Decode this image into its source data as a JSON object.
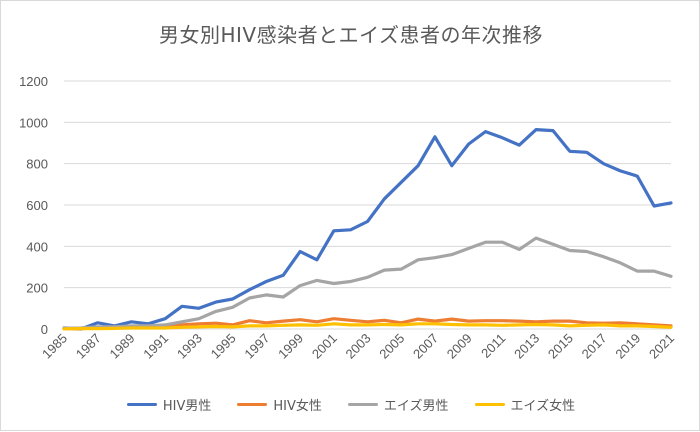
{
  "chart_data": {
    "type": "line",
    "title": "男女別HIV感染者とエイズ患者の年次推移",
    "x": [
      1985,
      1986,
      1987,
      1988,
      1989,
      1990,
      1991,
      1992,
      1993,
      1994,
      1995,
      1996,
      1997,
      1998,
      1999,
      2000,
      2001,
      2002,
      2003,
      2004,
      2005,
      2006,
      2007,
      2008,
      2009,
      2010,
      2011,
      2012,
      2013,
      2014,
      2015,
      2016,
      2017,
      2018,
      2019,
      2020,
      2021
    ],
    "x_tick_labels": [
      "1985",
      "1987",
      "1989",
      "1991",
      "1993",
      "1995",
      "1997",
      "1999",
      "2001",
      "2003",
      "2005",
      "2007",
      "2009",
      "2011",
      "2013",
      "2015",
      "2017",
      "2019",
      "2021"
    ],
    "y_tick_labels": [
      "0",
      "200",
      "400",
      "600",
      "800",
      "1000",
      "1200"
    ],
    "ylim": [
      0,
      1200
    ],
    "grid": true,
    "legend_position": "bottom",
    "series": [
      {
        "name": "HIV男性",
        "color": "#4472c4",
        "values": [
          5,
          0,
          30,
          15,
          35,
          25,
          50,
          110,
          100,
          130,
          145,
          190,
          230,
          260,
          375,
          335,
          475,
          480,
          520,
          630,
          710,
          790,
          930,
          790,
          895,
          955,
          925,
          890,
          965,
          960,
          860,
          855,
          800,
          765,
          740,
          595,
          610
        ]
      },
      {
        "name": "HIV女性",
        "color": "#ed7d31",
        "values": [
          2,
          2,
          5,
          8,
          10,
          12,
          15,
          20,
          25,
          28,
          20,
          40,
          30,
          38,
          45,
          35,
          50,
          42,
          35,
          42,
          30,
          48,
          38,
          48,
          38,
          40,
          40,
          38,
          35,
          38,
          38,
          30,
          28,
          30,
          25,
          20,
          15
        ]
      },
      {
        "name": "エイズ男性",
        "color": "#a5a5a5",
        "values": [
          3,
          5,
          10,
          10,
          15,
          15,
          20,
          35,
          50,
          85,
          105,
          150,
          165,
          155,
          210,
          235,
          220,
          230,
          250,
          285,
          290,
          335,
          345,
          360,
          390,
          420,
          420,
          385,
          440,
          410,
          380,
          375,
          350,
          320,
          280,
          280,
          255
        ]
      },
      {
        "name": "エイズ女性",
        "color": "#ffc000",
        "values": [
          1,
          2,
          2,
          3,
          5,
          5,
          5,
          8,
          10,
          12,
          10,
          15,
          15,
          18,
          20,
          18,
          25,
          20,
          20,
          22,
          20,
          25,
          25,
          22,
          20,
          20,
          18,
          20,
          22,
          20,
          15,
          18,
          20,
          15,
          15,
          12,
          8
        ]
      }
    ]
  }
}
